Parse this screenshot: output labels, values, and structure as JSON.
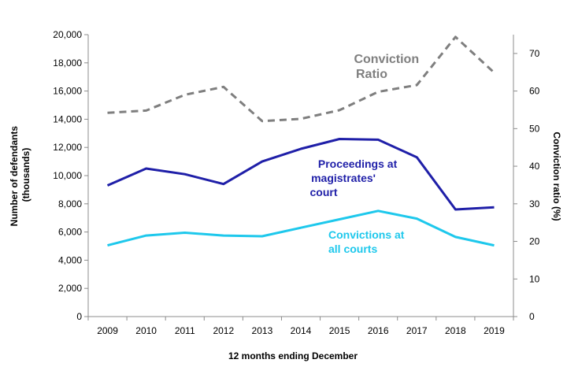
{
  "chart_data": {
    "type": "line",
    "xlabel": "12 months ending December",
    "ylabel_left": "Number of defendants (thousands)",
    "ylabel_left_lines": [
      "Number of defendants",
      "(thousands)"
    ],
    "ylabel_right": "Conviction ratio (%)",
    "categories": [
      "2009",
      "2010",
      "2011",
      "2012",
      "2013",
      "2014",
      "2015",
      "2016",
      "2017",
      "2018",
      "2019"
    ],
    "ylim_left": [
      0,
      20000
    ],
    "yticks_left": [
      "0",
      "2,000",
      "4,000",
      "6,000",
      "8,000",
      "10,000",
      "12,000",
      "14,000",
      "16,000",
      "18,000",
      "20,000"
    ],
    "ylim_right": [
      0,
      75
    ],
    "yticks_right": [
      "0",
      "10",
      "20",
      "30",
      "40",
      "50",
      "60",
      "70"
    ],
    "grid": false,
    "series": [
      {
        "name": "Proceedings at magistrates' court",
        "label_lines": [
          "Proceedings at",
          "magistrates'",
          "court"
        ],
        "axis": "left",
        "color": "#1f1fa8",
        "style": "solid",
        "values": [
          9300,
          10500,
          10100,
          9400,
          11000,
          11900,
          12600,
          12550,
          11300,
          7600,
          7750
        ]
      },
      {
        "name": "Convictions at all courts",
        "label_lines": [
          "Convictions at",
          "all courts"
        ],
        "axis": "left",
        "color": "#1ec8ec",
        "style": "solid",
        "values": [
          5050,
          5750,
          5950,
          5750,
          5700,
          6300,
          6900,
          7500,
          6950,
          5650,
          5050
        ]
      },
      {
        "name": "Conviction Ratio",
        "label_lines": [
          "Conviction",
          "Ratio"
        ],
        "axis": "right",
        "color": "#7f7f7f",
        "style": "dashed",
        "values": [
          54.2,
          54.8,
          59.0,
          61.1,
          52.0,
          52.6,
          54.9,
          59.8,
          61.6,
          74.4,
          64.9
        ]
      }
    ]
  }
}
